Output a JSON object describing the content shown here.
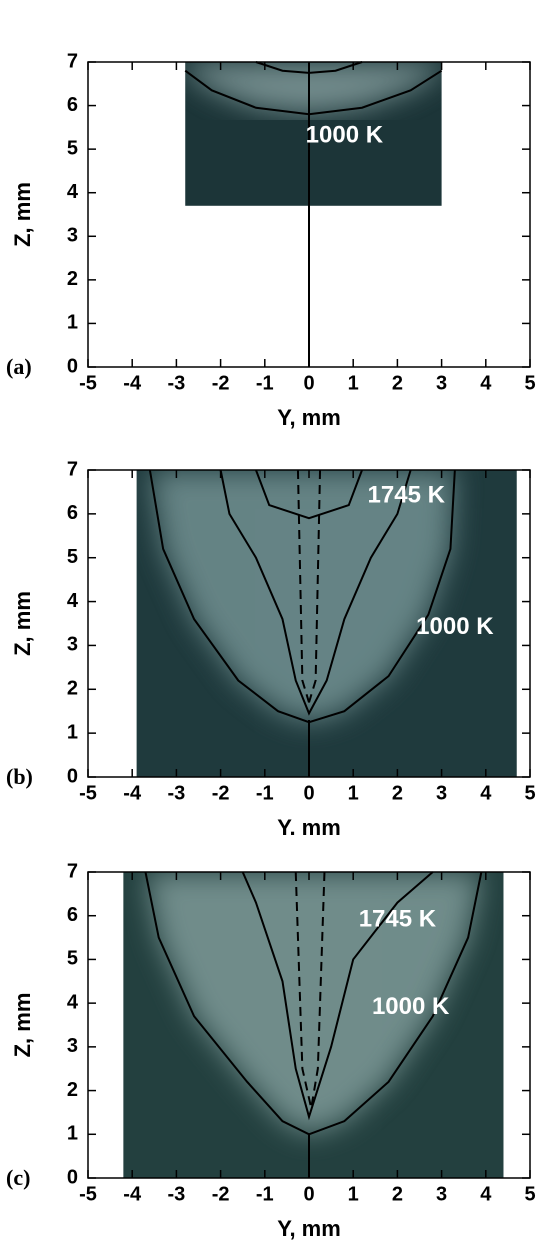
{
  "chart_data": [
    {
      "type": "contour",
      "panel_label": "(a)",
      "xlabel": "Y, mm",
      "ylabel": "Z, mm",
      "xlim": [
        -5,
        5
      ],
      "ylim": [
        0,
        7
      ],
      "xticks": [
        -5,
        -4,
        -3,
        -2,
        -1,
        0,
        1,
        2,
        3,
        4,
        5
      ],
      "yticks": [
        0,
        1,
        2,
        3,
        4,
        5,
        6,
        7
      ],
      "image_xlim": [
        -2.8,
        3
      ],
      "image_ylim": [
        3.7,
        7
      ],
      "image_color": "#1c3538",
      "glow_color": "#8fa8a8",
      "contours": [
        {
          "style": "solid",
          "x": [
            0,
            0
          ],
          "y": [
            0,
            7
          ]
        },
        {
          "style": "solid",
          "x": [
            -2.8,
            -2.2,
            -1.2,
            0,
            1.2,
            2.3,
            3
          ],
          "y": [
            6.8,
            6.35,
            5.95,
            5.8,
            5.95,
            6.35,
            6.8
          ]
        },
        {
          "style": "solid",
          "x": [
            -1.2,
            -0.6,
            0,
            0.6,
            1.2
          ],
          "y": [
            7,
            6.8,
            6.75,
            6.8,
            7
          ]
        }
      ],
      "annotations": [
        {
          "text": "1000 K",
          "x": 0.8,
          "y": 5.3
        }
      ]
    },
    {
      "type": "contour",
      "panel_label": "(b)",
      "xlabel": "Y. mm",
      "ylabel": "Z, mm",
      "xlim": [
        -5,
        5
      ],
      "ylim": [
        0,
        7
      ],
      "xticks": [
        -5,
        -4,
        -3,
        -2,
        -1,
        0,
        1,
        2,
        3,
        4,
        5
      ],
      "yticks": [
        0,
        1,
        2,
        3,
        4,
        5,
        6,
        7
      ],
      "image_xlim": [
        -3.9,
        4.7
      ],
      "image_ylim": [
        0,
        7
      ],
      "image_color": "#1f3a3d",
      "glow_color": "#7d9c9d",
      "contours": [
        {
          "style": "solid",
          "x": [
            0,
            0
          ],
          "y": [
            0,
            1.3
          ]
        },
        {
          "style": "solid",
          "x": [
            -3.6,
            -3.3,
            -2.6,
            -1.6,
            -0.7,
            0,
            0.8,
            1.8,
            2.7,
            3.2,
            3.3
          ],
          "y": [
            7,
            5.2,
            3.6,
            2.2,
            1.5,
            1.25,
            1.5,
            2.3,
            3.7,
            5.2,
            7
          ]
        },
        {
          "style": "solid",
          "x": [
            -2.0,
            -1.8,
            -1.2,
            -0.6,
            -0.3,
            0,
            0.4,
            0.8,
            1.4,
            2.0,
            2.3
          ],
          "y": [
            7,
            6.0,
            5.0,
            3.6,
            2.2,
            1.45,
            2.2,
            3.6,
            5.0,
            6.0,
            7
          ]
        },
        {
          "style": "solid",
          "x": [
            -1.2,
            -0.9,
            0,
            0.9,
            1.2
          ],
          "y": [
            7,
            6.2,
            5.9,
            6.2,
            7
          ]
        },
        {
          "style": "dashed",
          "x": [
            -0.25,
            -0.15,
            0
          ],
          "y": [
            7,
            2.2,
            1.7
          ]
        },
        {
          "style": "dashed",
          "x": [
            0.25,
            0.15,
            0
          ],
          "y": [
            7,
            2.2,
            1.7
          ]
        }
      ],
      "annotations": [
        {
          "text": "1745 K",
          "x": 2.2,
          "y": 6.4
        },
        {
          "text": "1000 K",
          "x": 3.3,
          "y": 3.4
        }
      ]
    },
    {
      "type": "contour",
      "panel_label": "(c)",
      "xlabel": "Y, mm",
      "ylabel": "Z, mm",
      "xlim": [
        -5,
        5
      ],
      "ylim": [
        0,
        7
      ],
      "xticks": [
        -5,
        -4,
        -3,
        -2,
        -1,
        0,
        1,
        2,
        3,
        4,
        5
      ],
      "yticks": [
        0,
        1,
        2,
        3,
        4,
        5,
        6,
        7
      ],
      "image_xlim": [
        -4.2,
        4.4
      ],
      "image_ylim": [
        0,
        7
      ],
      "image_color": "#23403f",
      "glow_color": "#8aa6a4",
      "contours": [
        {
          "style": "solid",
          "x": [
            0,
            0
          ],
          "y": [
            0,
            1.0
          ]
        },
        {
          "style": "solid",
          "x": [
            -3.7,
            -3.4,
            -2.6,
            -1.4,
            -0.6,
            0,
            0.8,
            1.8,
            2.8,
            3.6,
            3.9
          ],
          "y": [
            7,
            5.5,
            3.7,
            2.2,
            1.3,
            1.0,
            1.3,
            2.2,
            3.7,
            5.5,
            7
          ]
        },
        {
          "style": "solid",
          "x": [
            -1.5,
            -1.2,
            -0.6,
            -0.3,
            0,
            0.5,
            1.0,
            2.0,
            2.8
          ],
          "y": [
            7,
            6.3,
            4.5,
            2.5,
            1.4,
            3.0,
            5.0,
            6.3,
            7
          ]
        },
        {
          "style": "dashed",
          "x": [
            -0.3,
            -0.15,
            0.05
          ],
          "y": [
            7,
            2.5,
            1.6
          ]
        },
        {
          "style": "dashed",
          "x": [
            0.35,
            0.2,
            0.05
          ],
          "y": [
            7,
            2.5,
            1.6
          ]
        }
      ],
      "annotations": [
        {
          "text": "1745 K",
          "x": 2.0,
          "y": 5.9
        },
        {
          "text": "1000 K",
          "x": 2.3,
          "y": 3.9
        }
      ]
    }
  ]
}
